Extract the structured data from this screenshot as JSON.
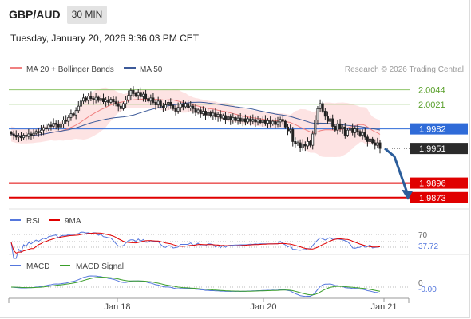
{
  "header": {
    "symbol": "GBP/AUD",
    "timeframe": "30 MIN",
    "datetime": "Tuesday, January 20, 2026 9:36:03 PM CET"
  },
  "legend": {
    "ma20": {
      "label": "MA 20 + Bollinger Bands",
      "color": "#f08080"
    },
    "ma50": {
      "label": "MA 50",
      "color": "#3d5a99"
    },
    "source": "Research © 2026 Trading Central"
  },
  "colors": {
    "up": "#ffffff",
    "down": "#222222",
    "band": "#fde3e3",
    "resistance": "#8fc46a",
    "pivot": "#2f6bd8",
    "support": "#e00000",
    "current": "#2b2b2b",
    "arrow": "#2b5d9b",
    "rsi": "#5577dd",
    "rsi_ma": "#e00000",
    "macd": "#5577dd",
    "macd_signal": "#3a9e2a"
  },
  "chart_data": [
    {
      "type": "candlestick",
      "ylim": [
        1.9855,
        2.0065
      ],
      "x_tick_labels": [
        "Jan 18",
        "Jan 20",
        "Jan 21"
      ],
      "levels": [
        {
          "name": "resistance",
          "value": 2.0044,
          "label": "2.0044"
        },
        {
          "name": "resistance",
          "value": 2.0021,
          "label": "2.0021"
        },
        {
          "name": "pivot",
          "value": 1.9982,
          "label": "1.9982"
        },
        {
          "name": "current",
          "value": 1.9951,
          "label": "1.9951"
        },
        {
          "name": "support",
          "value": 1.9896,
          "label": "1.9896"
        },
        {
          "name": "support",
          "value": 1.9873,
          "label": "1.9873"
        }
      ],
      "closes": [
        1.9974,
        1.9972,
        1.9969,
        1.9971,
        1.9968,
        1.9972,
        1.997,
        1.9974,
        1.9972,
        1.9975,
        1.9978,
        1.9976,
        1.998,
        1.9984,
        1.9982,
        1.9988,
        1.9986,
        1.9991,
        1.9989,
        1.9985,
        1.999,
        1.9996,
        1.9994,
        2.0,
        2.0006,
        2.0004,
        2.0011,
        2.0018,
        2.0026,
        2.0031,
        2.0027,
        2.0034,
        2.003,
        2.0028,
        2.0032,
        2.0027,
        2.003,
        2.0025,
        2.0028,
        2.0024,
        2.0029,
        2.0025,
        2.0022,
        2.0018,
        2.0014,
        2.0022,
        2.0028,
        2.0035,
        2.0043,
        2.0038,
        2.0035,
        2.004,
        2.0033,
        2.0037,
        2.003,
        2.0026,
        2.0031,
        2.0024,
        2.002,
        2.0026,
        2.0018,
        2.0015,
        2.002,
        2.0024,
        2.0019,
        2.0014,
        2.001,
        2.0016,
        2.0021,
        2.0017,
        2.0022,
        2.0015,
        2.0018,
        2.0014,
        2.0008,
        2.0012,
        2.0006,
        2.001,
        2.0004,
        2.0008,
        2.0003,
        2.0007,
        2.0001,
        2.0005,
        1.9999,
        2.0003,
        1.9997,
        2.0001,
        1.9996,
        2.0,
        1.9995,
        1.9999,
        1.9994,
        1.9998,
        1.9993,
        1.9998,
        1.9994,
        1.9997,
        1.9993,
        1.9996,
        1.9992,
        1.9996,
        1.9991,
        1.9995,
        1.999,
        1.9994,
        1.9989,
        1.9993,
        1.9997,
        1.9994,
        1.9985,
        1.9979,
        1.9981,
        1.9962,
        1.9958,
        1.996,
        1.9952,
        1.9958,
        1.9955,
        1.9962,
        1.9956,
        1.9974,
        1.9996,
        2.0014,
        2.0022,
        2.001,
        2.0002,
        1.9994,
        1.9998,
        1.9986,
        1.998,
        1.999,
        1.9982,
        1.9985,
        1.9972,
        1.998,
        1.9983,
        1.9976,
        1.9982,
        1.9978,
        1.9972,
        1.9976,
        1.9969,
        1.9962,
        1.9966,
        1.996,
        1.9956,
        1.996,
        1.9951
      ],
      "rsi": {
        "label": "RSI",
        "ma_label": "9MA",
        "level_label": "70",
        "value_label": "37.72"
      },
      "macd": {
        "label": "MACD",
        "signal_label": "MACD Signal",
        "level_label": "0",
        "value_label": "-0.00"
      }
    }
  ]
}
